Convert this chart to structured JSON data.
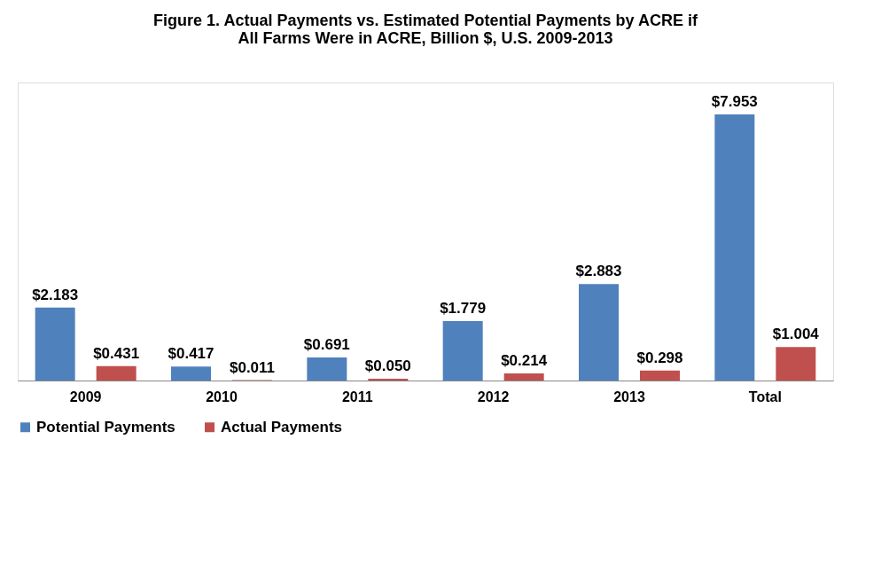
{
  "chart_data": {
    "type": "bar",
    "title": [
      "Figure 1.  Actual Payments vs. Estimated Potential Payments by ACRE if",
      "All Farms Were in ACRE, Billion $, U.S. 2009-2013"
    ],
    "categories": [
      "2009",
      "2010",
      "2011",
      "2012",
      "2013",
      "Total"
    ],
    "series": [
      {
        "name": "Potential Payments",
        "color": "#4f81bd",
        "values": [
          2.183,
          0.417,
          0.691,
          1.779,
          2.883,
          7.953
        ],
        "value_labels": [
          "$2.183",
          "$0.417",
          "$0.691",
          "$1.779",
          "$2.883",
          "$7.953"
        ]
      },
      {
        "name": "Actual Payments",
        "color": "#c0504d",
        "values": [
          0.431,
          0.011,
          0.05,
          0.214,
          0.298,
          1.004
        ],
        "value_labels": [
          "$0.431",
          "$0.011",
          "$0.050",
          "$0.214",
          "$0.298",
          "$1.004"
        ]
      }
    ],
    "tick_labels": "x",
    "grid": false,
    "legend": "bottom"
  }
}
